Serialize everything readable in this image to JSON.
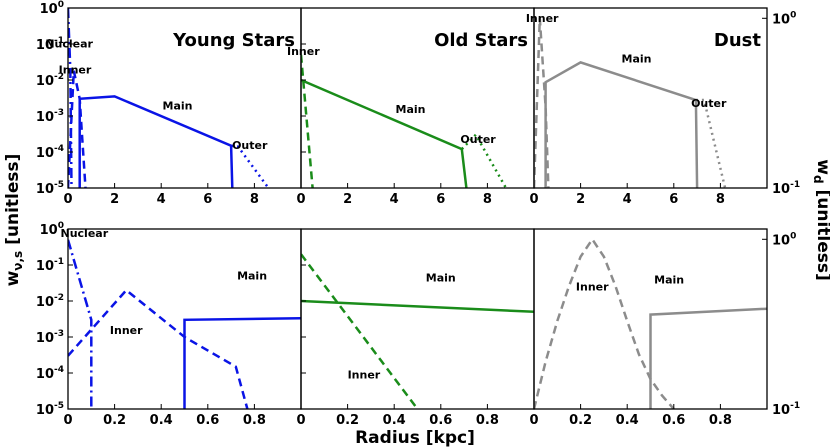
{
  "figure": {
    "xlabel": "Radius [kpc]",
    "ylabel_left": "w_{ν,s} [unitless]",
    "ylabel_right": "w_d [unitless]"
  },
  "chart_data": [
    {
      "type": "line",
      "panel": "top-young",
      "title": "Young Stars",
      "xlim": [
        0,
        10
      ],
      "ylim": [
        1e-05,
        1
      ],
      "yscale": "log",
      "xticks": [
        0,
        2,
        4,
        6,
        8
      ],
      "yticks": [
        1e-05,
        0.0001,
        0.001,
        0.01,
        0.1,
        1
      ],
      "ytick_labels": [
        "10^-5",
        "10^-4",
        "10^-3",
        "10^-2",
        "10^-1",
        "10^0"
      ],
      "series": [
        {
          "name": "Nuclear",
          "style": "dashdot",
          "color": "#0a14e6",
          "x": [
            0.0,
            0.1,
            0.15
          ],
          "y": [
            1.0,
            0.02,
            1e-05
          ]
        },
        {
          "name": "Inner",
          "style": "dashed",
          "color": "#0a14e6",
          "x": [
            0.0,
            0.25,
            0.5,
            0.6,
            0.75
          ],
          "y": [
            1e-05,
            0.018,
            0.003,
            0.0003,
            1e-05
          ]
        },
        {
          "name": "Main",
          "style": "solid",
          "color": "#0a14e6",
          "x": [
            0.5,
            0.5,
            2.0,
            7.0,
            7.05
          ],
          "y": [
            1e-05,
            0.003,
            0.0035,
            0.00015,
            1e-05
          ]
        },
        {
          "name": "Outer",
          "style": "dotted",
          "color": "#0a14e6",
          "x": [
            7.0,
            7.3,
            8.6
          ],
          "y": [
            0.00015,
            0.00014,
            1e-05
          ]
        }
      ],
      "annotations": [
        {
          "text": "Nuclear",
          "x": 0.05,
          "y": 0.08
        },
        {
          "text": "Inner",
          "x": 0.3,
          "y": 0.015
        },
        {
          "text": "Main",
          "x": 4.7,
          "y": 0.0015
        },
        {
          "text": "Outer",
          "x": 7.8,
          "y": 0.00012
        }
      ]
    },
    {
      "type": "line",
      "panel": "top-old",
      "title": "Old Stars",
      "xlim": [
        0,
        10
      ],
      "ylim": [
        1e-05,
        1
      ],
      "yscale": "log",
      "xticks": [
        0,
        2,
        4,
        6,
        8
      ],
      "yticks": [
        1e-05,
        0.0001,
        0.001,
        0.01,
        0.1,
        1
      ],
      "series": [
        {
          "name": "Inner",
          "style": "dashed",
          "color": "#1a8c1a",
          "x": [
            0.0,
            0.5
          ],
          "y": [
            0.05,
            1e-05
          ]
        },
        {
          "name": "Main",
          "style": "solid",
          "color": "#1a8c1a",
          "x": [
            0.0,
            6.9,
            7.1
          ],
          "y": [
            0.01,
            0.00012,
            1e-05
          ]
        },
        {
          "name": "Outer",
          "style": "dotted",
          "color": "#1a8c1a",
          "x": [
            6.9,
            7.5,
            8.8
          ],
          "y": [
            0.00012,
            0.0003,
            1e-05
          ]
        }
      ],
      "annotations": [
        {
          "text": "Inner",
          "x": 0.1,
          "y": 0.05
        },
        {
          "text": "Main",
          "x": 4.7,
          "y": 0.0012
        },
        {
          "text": "Outer",
          "x": 7.6,
          "y": 0.00018
        }
      ]
    },
    {
      "type": "line",
      "panel": "top-dust",
      "title": "Dust",
      "xlim": [
        0,
        10
      ],
      "ylim": [
        0.1,
        1.15
      ],
      "yscale": "log",
      "xticks": [
        0,
        2,
        4,
        6,
        8
      ],
      "yticks": [
        0.1,
        1
      ],
      "ytick_labels": [
        "10^-1",
        "10^0"
      ],
      "series": [
        {
          "name": "Inner",
          "style": "dashed",
          "color": "#8c8c8c",
          "x": [
            0.0,
            0.25,
            0.5,
            0.62
          ],
          "y": [
            0.1,
            1.0,
            0.3,
            0.1
          ]
        },
        {
          "name": "Main",
          "style": "solid",
          "color": "#8c8c8c",
          "x": [
            0.5,
            0.5,
            2.0,
            6.95,
            7.0
          ],
          "y": [
            0.1,
            0.42,
            0.55,
            0.33,
            0.1
          ]
        },
        {
          "name": "Outer",
          "style": "dotted",
          "color": "#8c8c8c",
          "x": [
            6.95,
            7.3,
            8.2
          ],
          "y": [
            0.33,
            0.33,
            0.1
          ]
        }
      ],
      "annotations": [
        {
          "text": "Inner",
          "x": 0.35,
          "y": 0.95
        },
        {
          "text": "Main",
          "x": 4.4,
          "y": 0.55
        },
        {
          "text": "Outer",
          "x": 7.5,
          "y": 0.3
        }
      ]
    },
    {
      "type": "line",
      "panel": "bottom-young",
      "xlim": [
        0,
        1.0
      ],
      "ylim": [
        1e-05,
        1
      ],
      "yscale": "log",
      "xticks": [
        0,
        0.2,
        0.4,
        0.6,
        0.8
      ],
      "yticks": [
        1e-05,
        0.0001,
        0.001,
        0.01,
        0.1,
        1
      ],
      "ytick_labels": [
        "10^-5",
        "10^-4",
        "10^-3",
        "10^-2",
        "10^-1",
        "10^0"
      ],
      "series": [
        {
          "name": "Nuclear",
          "style": "dashdot",
          "color": "#0a14e6",
          "x": [
            0.0,
            0.1,
            0.1
          ],
          "y": [
            0.5,
            0.003,
            1e-05
          ]
        },
        {
          "name": "Inner",
          "style": "dashed",
          "color": "#0a14e6",
          "x": [
            0.0,
            0.25,
            0.5,
            0.72,
            0.77
          ],
          "y": [
            0.0003,
            0.02,
            0.001,
            0.00015,
            1e-05
          ]
        },
        {
          "name": "Main",
          "style": "solid",
          "color": "#0a14e6",
          "x": [
            0.5,
            0.5,
            1.0
          ],
          "y": [
            1e-05,
            0.003,
            0.0033
          ]
        }
      ],
      "annotations": [
        {
          "text": "Nuclear",
          "x": 0.07,
          "y": 0.6
        },
        {
          "text": "Inner",
          "x": 0.25,
          "y": 0.0012
        },
        {
          "text": "Main",
          "x": 0.79,
          "y": 0.04
        }
      ]
    },
    {
      "type": "line",
      "panel": "bottom-old",
      "xlim": [
        0,
        1.0
      ],
      "ylim": [
        1e-05,
        1
      ],
      "yscale": "log",
      "xticks": [
        0,
        0.2,
        0.4,
        0.6,
        0.8
      ],
      "yticks": [
        1e-05,
        0.0001,
        0.001,
        0.01,
        0.1,
        1
      ],
      "series": [
        {
          "name": "Inner",
          "style": "dashed",
          "color": "#1a8c1a",
          "x": [
            0.0,
            0.5
          ],
          "y": [
            0.2,
            1e-05
          ]
        },
        {
          "name": "Main",
          "style": "solid",
          "color": "#1a8c1a",
          "x": [
            0.0,
            1.0
          ],
          "y": [
            0.01,
            0.005
          ]
        }
      ],
      "annotations": [
        {
          "text": "Main",
          "x": 0.6,
          "y": 0.035
        },
        {
          "text": "Inner",
          "x": 0.27,
          "y": 7e-05
        }
      ]
    },
    {
      "type": "line",
      "panel": "bottom-dust",
      "xlim": [
        0,
        1.0
      ],
      "ylim": [
        0.1,
        1.15
      ],
      "yscale": "log",
      "xticks": [
        0,
        0.2,
        0.4,
        0.6,
        0.8
      ],
      "yticks": [
        0.1,
        1
      ],
      "ytick_labels": [
        "10^-1",
        "10^0"
      ],
      "series": [
        {
          "name": "Inner",
          "style": "dashed",
          "color": "#8c8c8c",
          "x": [
            0.0,
            0.05,
            0.1,
            0.15,
            0.2,
            0.25,
            0.3,
            0.35,
            0.4,
            0.45,
            0.5,
            0.55,
            0.6
          ],
          "y": [
            0.1,
            0.19,
            0.33,
            0.53,
            0.79,
            1.0,
            0.79,
            0.53,
            0.33,
            0.21,
            0.15,
            0.12,
            0.1
          ]
        },
        {
          "name": "Main",
          "style": "solid",
          "color": "#8c8c8c",
          "x": [
            0.5,
            0.5,
            1.0
          ],
          "y": [
            0.1,
            0.36,
            0.39
          ]
        }
      ],
      "annotations": [
        {
          "text": "Inner",
          "x": 0.25,
          "y": 0.5
        },
        {
          "text": "Main",
          "x": 0.58,
          "y": 0.55
        }
      ]
    }
  ]
}
